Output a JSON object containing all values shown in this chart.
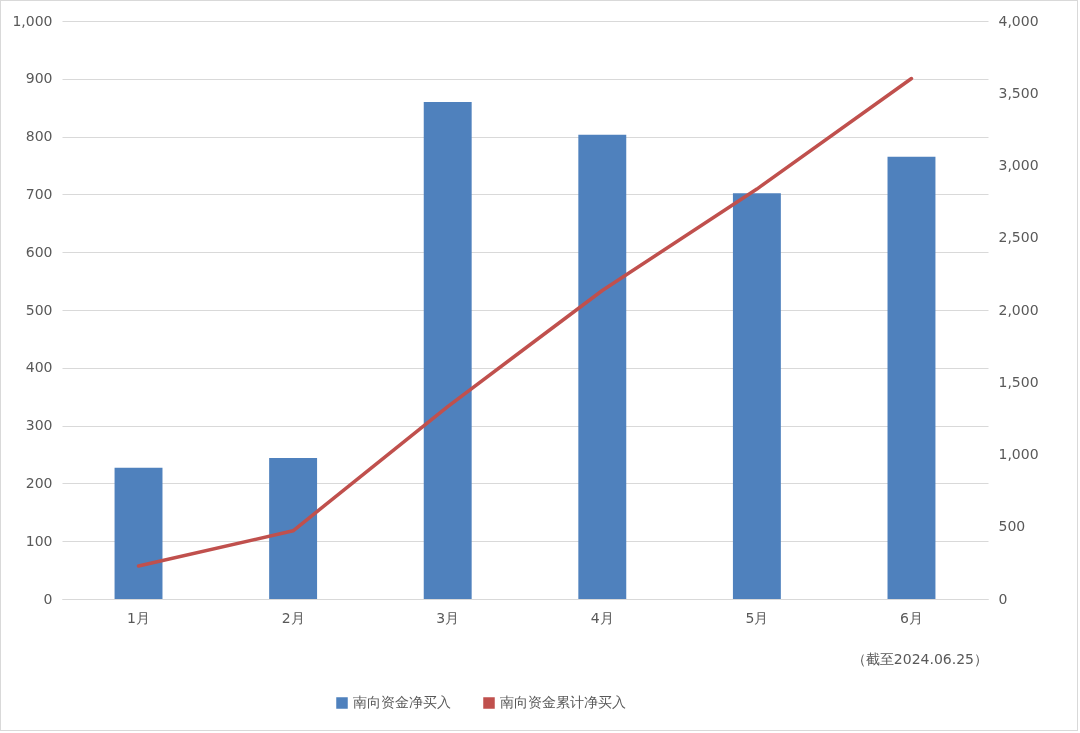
{
  "chart_data": {
    "type": "bar",
    "categories": [
      "1月",
      "2月",
      "3月",
      "4月",
      "5月",
      "6月"
    ],
    "series": [
      {
        "name": "南向资金净买入",
        "color": "#4f81bd",
        "values": [
          227,
          244,
          860,
          803,
          702,
          765
        ]
      },
      {
        "name": "南向资金累计净买入",
        "type": "line",
        "axis": "y2",
        "color": "#c0504d",
        "values": [
          228,
          472,
          1332,
          2135,
          2837,
          3602
        ]
      }
    ],
    "ylim": [
      0,
      1000
    ],
    "yticks": [
      0,
      100,
      200,
      300,
      400,
      500,
      600,
      700,
      800,
      900,
      {
        "value": 1000,
        "label": "1,000"
      }
    ],
    "y2lim": [
      0,
      4000
    ],
    "y2ticks": [
      0,
      500,
      {
        "value": 1000,
        "label": "1,000"
      },
      {
        "value": 1500,
        "label": "1,500"
      },
      {
        "value": 2000,
        "label": "2,000"
      },
      {
        "value": 2500,
        "label": "2,500"
      },
      {
        "value": 3000,
        "label": "3,000"
      },
      {
        "value": 3500,
        "label": "3,500"
      },
      {
        "value": 4000,
        "label": "4,000"
      }
    ],
    "grid": "y",
    "legend": "bottom",
    "annotations": [
      "（截至2024.06.25）"
    ]
  }
}
